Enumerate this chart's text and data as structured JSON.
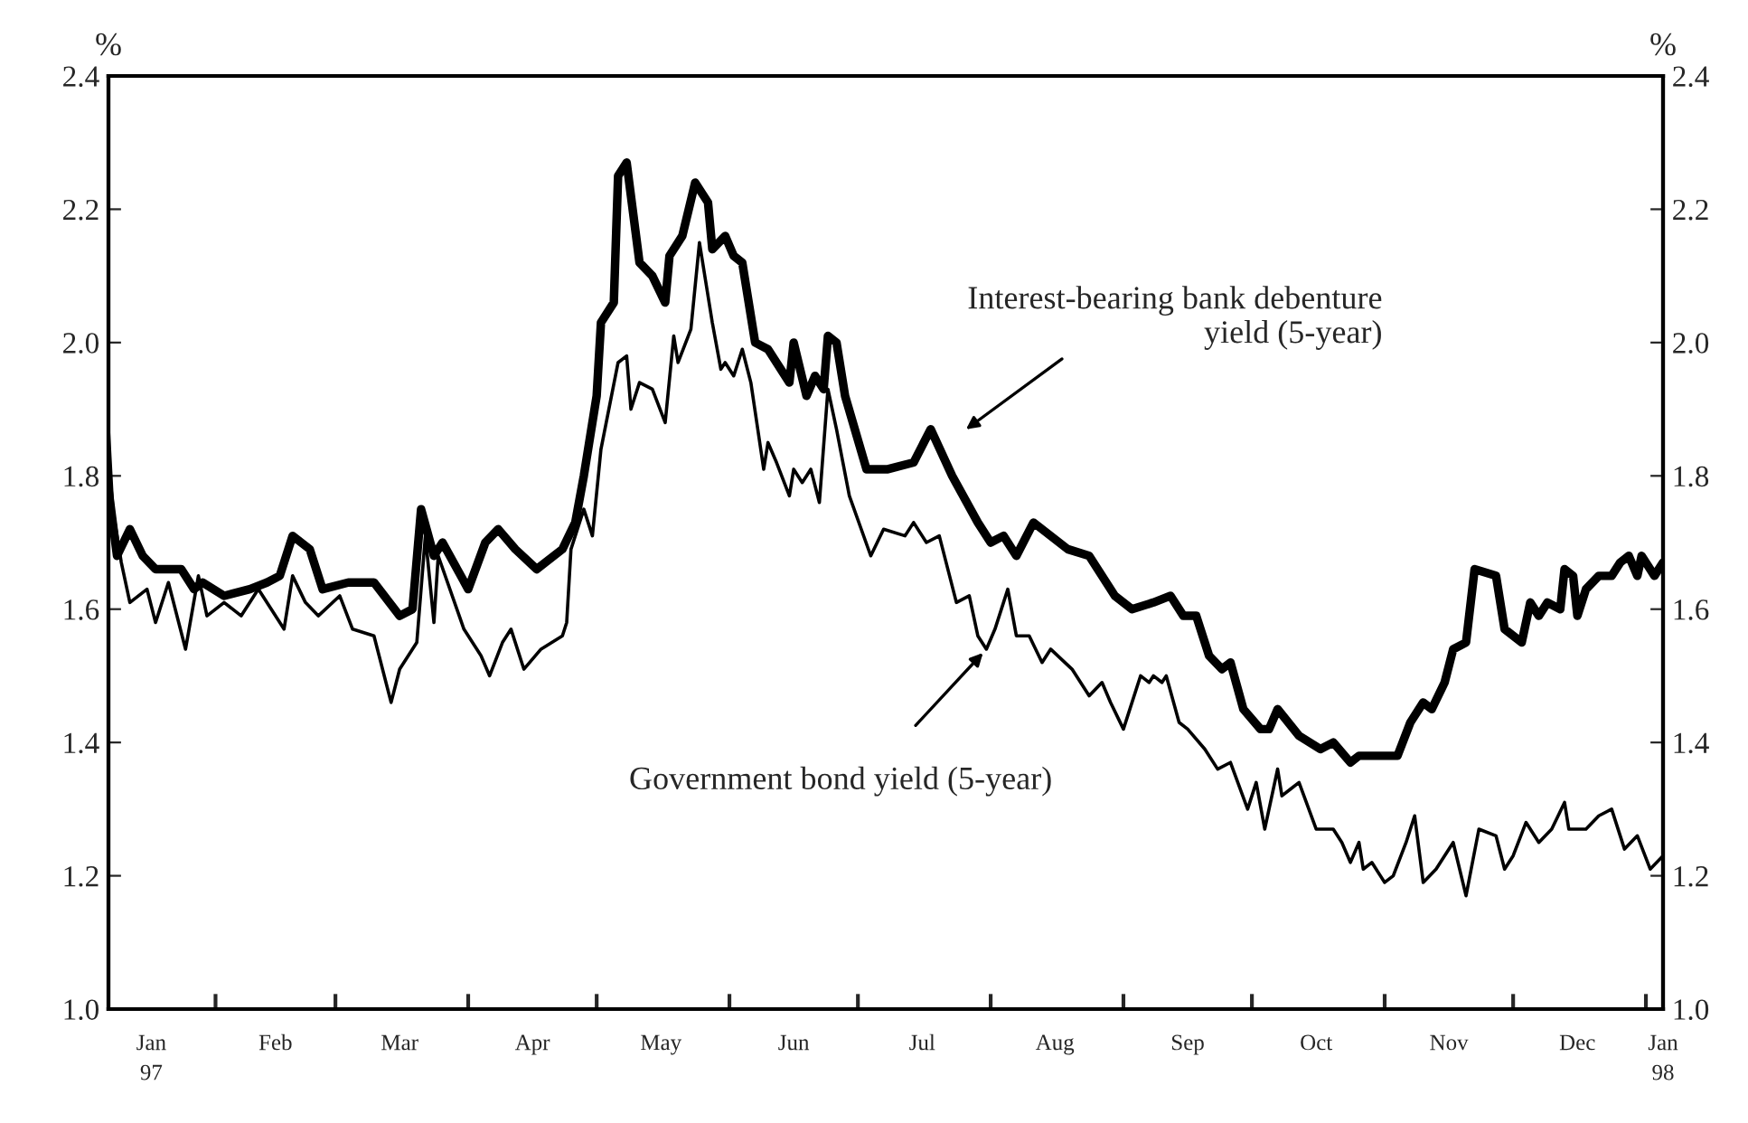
{
  "chart_data": {
    "type": "line",
    "ylabel": "%",
    "y2label": "%",
    "xlim": [
      "1997-01-07",
      "1998-01-05"
    ],
    "xticks": [
      {
        "value": "1997-01-17",
        "label": "Jan\n97"
      },
      {
        "value": "1997-02-01",
        "label": null
      },
      {
        "value": "1997-02-15",
        "label": "Feb"
      },
      {
        "value": "1997-03-01",
        "label": null
      },
      {
        "value": "1997-03-16",
        "label": "Mar"
      },
      {
        "value": "1997-04-01",
        "label": null
      },
      {
        "value": "1997-04-16",
        "label": "Apr"
      },
      {
        "value": "1997-05-01",
        "label": null
      },
      {
        "value": "1997-05-16",
        "label": "May"
      },
      {
        "value": "1997-06-01",
        "label": null
      },
      {
        "value": "1997-06-16",
        "label": "Jun"
      },
      {
        "value": "1997-07-01",
        "label": null
      },
      {
        "value": "1997-07-16",
        "label": "Jul"
      },
      {
        "value": "1997-08-01",
        "label": null
      },
      {
        "value": "1997-08-16",
        "label": "Aug"
      },
      {
        "value": "1997-09-01",
        "label": null
      },
      {
        "value": "1997-09-16",
        "label": "Sep"
      },
      {
        "value": "1997-10-01",
        "label": null
      },
      {
        "value": "1997-10-16",
        "label": "Oct"
      },
      {
        "value": "1997-11-01",
        "label": null
      },
      {
        "value": "1997-11-16",
        "label": "Nov"
      },
      {
        "value": "1997-12-01",
        "label": null
      },
      {
        "value": "1997-12-16",
        "label": "Dec"
      },
      {
        "value": "1998-01-01",
        "label": null
      },
      {
        "value": "1998-01-05",
        "label": "Jan\n98"
      }
    ],
    "ylim": [
      1.0,
      2.4
    ],
    "yticks": [
      {
        "value": 1.0,
        "label": "1.0"
      },
      1.2,
      1.4,
      1.6,
      1.8,
      {
        "value": 2.0,
        "label": "2.0"
      },
      2.2,
      2.4
    ],
    "y2lim": [
      1.0,
      2.4
    ],
    "y2ticks": [
      {
        "value": 1.0,
        "label": "1.0"
      },
      1.2,
      1.4,
      1.6,
      1.8,
      {
        "value": 2.0,
        "label": "2.0"
      },
      2.2,
      2.4
    ],
    "grid": false,
    "legend": false,
    "marker": "none",
    "line_style": "solid",
    "series": [
      {
        "color": "#000000",
        "x": [
          "1997-01-07",
          "1997-01-09",
          "1997-01-12",
          "1997-01-15",
          "1997-01-18",
          "1997-01-24",
          "1997-01-27",
          "1997-01-29",
          "1997-02-03",
          "1997-02-09",
          "1997-02-13",
          "1997-02-16",
          "1997-02-19",
          "1997-02-23",
          "1997-02-26",
          "1997-03-04",
          "1997-03-08",
          "1997-03-10",
          "1997-03-16",
          "1997-03-19",
          "1997-03-21",
          "1997-03-24",
          "1997-03-26",
          "1997-04-01",
          "1997-04-05",
          "1997-04-08",
          "1997-04-12",
          "1997-04-17",
          "1997-04-23",
          "1997-04-26",
          "1997-04-28",
          "1997-05-01",
          "1997-05-02",
          "1997-05-05",
          "1997-05-06",
          "1997-05-08",
          "1997-05-11",
          "1997-05-14",
          "1997-05-17",
          "1997-05-18",
          "1997-05-21",
          "1997-05-24",
          "1997-05-27",
          "1997-05-28",
          "1997-05-31",
          "1997-06-02",
          "1997-06-04",
          "1997-06-07",
          "1997-06-10",
          "1997-06-15",
          "1997-06-16",
          "1997-06-19",
          "1997-06-21",
          "1997-06-23",
          "1997-06-24",
          "1997-06-26",
          "1997-06-28",
          "1997-07-03",
          "1997-07-08",
          "1997-07-14",
          "1997-07-18",
          "1997-07-23",
          "1997-07-29",
          "1997-08-01",
          "1997-08-04",
          "1997-08-07",
          "1997-08-11",
          "1997-08-19",
          "1997-08-24",
          "1997-08-30",
          "1997-09-03",
          "1997-09-08",
          "1997-09-12",
          "1997-09-15",
          "1997-09-18",
          "1997-09-21",
          "1997-09-24",
          "1997-09-26",
          "1997-09-29",
          "1997-10-03",
          "1997-10-05",
          "1997-10-07",
          "1997-10-12",
          "1997-10-17",
          "1997-10-20",
          "1997-10-24",
          "1997-10-26",
          "1997-10-30",
          "1997-11-04",
          "1997-11-07",
          "1997-11-10",
          "1997-11-12",
          "1997-11-15",
          "1997-11-17",
          "1997-11-20",
          "1997-11-22",
          "1997-11-27",
          "1997-11-29",
          "1997-12-03",
          "1997-12-05",
          "1997-12-07",
          "1997-12-09",
          "1997-12-12",
          "1997-12-13",
          "1997-12-15",
          "1997-12-16",
          "1997-12-18",
          "1997-12-21",
          "1997-12-24",
          "1997-12-26",
          "1997-12-28",
          "1997-12-30",
          "1997-12-31",
          "1998-01-03",
          "1998-01-05"
        ],
        "values": [
          1.78,
          1.68,
          1.72,
          1.68,
          1.66,
          1.66,
          1.63,
          1.64,
          1.62,
          1.63,
          1.64,
          1.65,
          1.71,
          1.69,
          1.63,
          1.64,
          1.64,
          1.64,
          1.59,
          1.6,
          1.75,
          1.68,
          1.7,
          1.63,
          1.7,
          1.72,
          1.69,
          1.66,
          1.69,
          1.73,
          1.8,
          1.92,
          2.03,
          2.06,
          2.25,
          2.27,
          2.12,
          2.1,
          2.06,
          2.13,
          2.16,
          2.24,
          2.21,
          2.14,
          2.16,
          2.13,
          2.12,
          2.0,
          1.99,
          1.94,
          2.0,
          1.92,
          1.95,
          1.93,
          2.01,
          2.0,
          1.92,
          1.81,
          1.81,
          1.82,
          1.87,
          1.8,
          1.73,
          1.7,
          1.71,
          1.68,
          1.73,
          1.69,
          1.68,
          1.62,
          1.6,
          1.61,
          1.62,
          1.59,
          1.59,
          1.53,
          1.51,
          1.52,
          1.45,
          1.42,
          1.42,
          1.45,
          1.41,
          1.39,
          1.4,
          1.37,
          1.38,
          1.38,
          1.38,
          1.43,
          1.46,
          1.45,
          1.49,
          1.54,
          1.55,
          1.66,
          1.65,
          1.57,
          1.55,
          1.61,
          1.59,
          1.61,
          1.6,
          1.66,
          1.65,
          1.59,
          1.63,
          1.65,
          1.65,
          1.67,
          1.68,
          1.65,
          1.68,
          1.65,
          1.67
        ]
      },
      {
        "color": "#000000",
        "x": [
          "1997-01-07",
          "1997-01-08",
          "1997-01-10",
          "1997-01-12",
          "1997-01-16",
          "1997-01-18",
          "1997-01-21",
          "1997-01-25",
          "1997-01-28",
          "1997-01-30",
          "1997-02-03",
          "1997-02-07",
          "1997-02-11",
          "1997-02-17",
          "1997-02-19",
          "1997-02-22",
          "1997-02-25",
          "1997-03-02",
          "1997-03-05",
          "1997-03-10",
          "1997-03-14",
          "1997-03-16",
          "1997-03-20",
          "1997-03-22",
          "1997-03-24",
          "1997-03-25",
          "1997-03-31",
          "1997-04-04",
          "1997-04-06",
          "1997-04-09",
          "1997-04-11",
          "1997-04-14",
          "1997-04-18",
          "1997-04-23",
          "1997-04-24",
          "1997-04-25",
          "1997-04-28",
          "1997-04-30",
          "1997-05-02",
          "1997-05-06",
          "1997-05-08",
          "1997-05-09",
          "1997-05-11",
          "1997-05-14",
          "1997-05-17",
          "1997-05-19",
          "1997-05-20",
          "1997-05-23",
          "1997-05-25",
          "1997-05-28",
          "1997-05-30",
          "1997-05-31",
          "1997-06-02",
          "1997-06-04",
          "1997-06-06",
          "1997-06-09",
          "1997-06-10",
          "1997-06-12",
          "1997-06-15",
          "1997-06-16",
          "1997-06-18",
          "1997-06-20",
          "1997-06-22",
          "1997-06-24",
          "1997-06-26",
          "1997-06-29",
          "1997-07-04",
          "1997-07-07",
          "1997-07-12",
          "1997-07-14",
          "1997-07-17",
          "1997-07-20",
          "1997-07-24",
          "1997-07-27",
          "1997-07-29",
          "1997-07-31",
          "1997-08-02",
          "1997-08-05",
          "1997-08-07",
          "1997-08-10",
          "1997-08-13",
          "1997-08-15",
          "1997-08-20",
          "1997-08-24",
          "1997-08-27",
          "1997-08-29",
          "1997-09-01",
          "1997-09-05",
          "1997-09-07",
          "1997-09-08",
          "1997-09-10",
          "1997-09-11",
          "1997-09-14",
          "1997-09-16",
          "1997-09-20",
          "1997-09-23",
          "1997-09-26",
          "1997-09-30",
          "1997-10-02",
          "1997-10-04",
          "1997-10-07",
          "1997-10-08",
          "1997-10-10",
          "1997-10-12",
          "1997-10-16",
          "1997-10-20",
          "1997-10-22",
          "1997-10-24",
          "1997-10-26",
          "1997-10-27",
          "1997-10-29",
          "1997-11-01",
          "1997-11-03",
          "1997-11-06",
          "1997-11-08",
          "1997-11-10",
          "1997-11-13",
          "1997-11-17",
          "1997-11-20",
          "1997-11-23",
          "1997-11-27",
          "1997-11-29",
          "1997-12-01",
          "1997-12-04",
          "1997-12-07",
          "1997-12-10",
          "1997-12-13",
          "1997-12-14",
          "1997-12-18",
          "1997-12-21",
          "1997-12-24",
          "1997-12-27",
          "1997-12-30",
          "1998-01-02",
          "1998-01-05"
        ],
        "values": [
          1.87,
          1.75,
          1.67,
          1.61,
          1.63,
          1.58,
          1.64,
          1.54,
          1.65,
          1.59,
          1.61,
          1.59,
          1.63,
          1.57,
          1.65,
          1.61,
          1.59,
          1.62,
          1.57,
          1.56,
          1.46,
          1.51,
          1.55,
          1.71,
          1.58,
          1.68,
          1.57,
          1.53,
          1.5,
          1.55,
          1.57,
          1.51,
          1.54,
          1.56,
          1.58,
          1.69,
          1.75,
          1.71,
          1.84,
          1.97,
          1.98,
          1.9,
          1.94,
          1.93,
          1.88,
          2.01,
          1.97,
          2.02,
          2.15,
          2.03,
          1.96,
          1.97,
          1.95,
          1.99,
          1.94,
          1.81,
          1.85,
          1.82,
          1.77,
          1.81,
          1.79,
          1.81,
          1.76,
          1.93,
          1.87,
          1.77,
          1.68,
          1.72,
          1.71,
          1.73,
          1.7,
          1.71,
          1.61,
          1.62,
          1.56,
          1.54,
          1.57,
          1.63,
          1.56,
          1.56,
          1.52,
          1.54,
          1.51,
          1.47,
          1.49,
          1.46,
          1.42,
          1.5,
          1.49,
          1.5,
          1.49,
          1.5,
          1.43,
          1.42,
          1.39,
          1.36,
          1.37,
          1.3,
          1.34,
          1.27,
          1.36,
          1.32,
          1.33,
          1.34,
          1.27,
          1.27,
          1.25,
          1.22,
          1.25,
          1.21,
          1.22,
          1.19,
          1.2,
          1.25,
          1.29,
          1.19,
          1.21,
          1.25,
          1.17,
          1.27,
          1.26,
          1.21,
          1.23,
          1.28,
          1.25,
          1.27,
          1.31,
          1.27,
          1.27,
          1.29,
          1.3,
          1.24,
          1.26,
          1.21,
          1.23
        ]
      }
    ],
    "annotations": [
      "Interest-bearing bank debenture\nyield (5-year)",
      {
        "text": "Government bond yield (5-year)",
        "x": "1997-07-31",
        "y": 1.54
      }
    ]
  }
}
